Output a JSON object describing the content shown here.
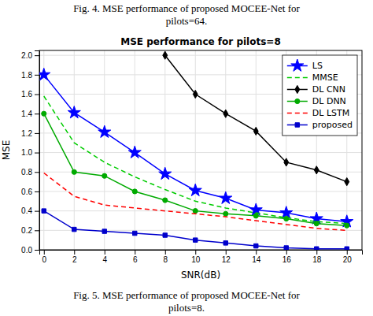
{
  "chart_data": {
    "type": "line",
    "title": "MSE performance for pilots=8",
    "xlabel": "SNR(dB)",
    "ylabel": "MSE",
    "annotations": [
      "Fig. 4. MSE performance of proposed MOCEE-Net for\npilots=64.",
      "Fig. 5. MSE performance of proposed MOCEE-Net for\npilots=8."
    ],
    "x": [
      0,
      2,
      4,
      6,
      8,
      10,
      12,
      14,
      16,
      18,
      20
    ],
    "series": [
      {
        "name": "LS",
        "color": "#0000FF",
        "marker": "star",
        "line_style": "solid",
        "values": [
          1.8,
          1.41,
          1.21,
          1.0,
          0.78,
          0.61,
          0.53,
          0.41,
          0.38,
          0.32,
          0.29
        ]
      },
      {
        "name": "MMSE",
        "color": "#00CC00",
        "line_style": "dashed",
        "values": [
          1.58,
          1.1,
          0.9,
          0.75,
          0.62,
          0.5,
          0.43,
          0.38,
          0.33,
          0.29,
          0.27
        ]
      },
      {
        "name": "DL CNN",
        "color": "#000000",
        "marker": "diamond",
        "line_style": "solid",
        "values": [
          null,
          null,
          null,
          null,
          2.0,
          1.6,
          1.4,
          1.22,
          0.9,
          0.82,
          0.7
        ]
      },
      {
        "name": "DL DNN",
        "color": "#00AA00",
        "marker": "circle",
        "line_style": "solid",
        "values": [
          1.4,
          0.8,
          0.76,
          0.6,
          0.51,
          0.4,
          0.37,
          0.35,
          0.32,
          0.27,
          0.25
        ]
      },
      {
        "name": "DL LSTM",
        "color": "#FF0000",
        "line_style": "dashed",
        "values": [
          0.79,
          0.55,
          0.46,
          0.43,
          0.4,
          0.37,
          0.34,
          0.3,
          0.26,
          0.22,
          0.2
        ]
      },
      {
        "name": "proposed",
        "color": "#0000CC",
        "marker": "square",
        "line_style": "solid",
        "values": [
          0.4,
          0.21,
          0.19,
          0.17,
          0.15,
          0.1,
          0.07,
          0.04,
          0.02,
          0.01,
          0.01
        ]
      }
    ],
    "xlim": [
      -0.3,
      21.0
    ],
    "ylim": [
      0,
      2.05
    ],
    "xticks": [
      0,
      2,
      4,
      6,
      8,
      10,
      12,
      14,
      16,
      18,
      20
    ],
    "yticks": [
      {
        "value": 0,
        "label": "0.0"
      },
      0.2,
      0.4,
      0.6,
      0.8,
      {
        "value": 1.0,
        "label": "1.0"
      },
      1.2,
      1.4,
      1.6,
      1.8,
      {
        "value": 2.0,
        "label": "2.0"
      }
    ],
    "grid": true,
    "legend": "upper right"
  }
}
